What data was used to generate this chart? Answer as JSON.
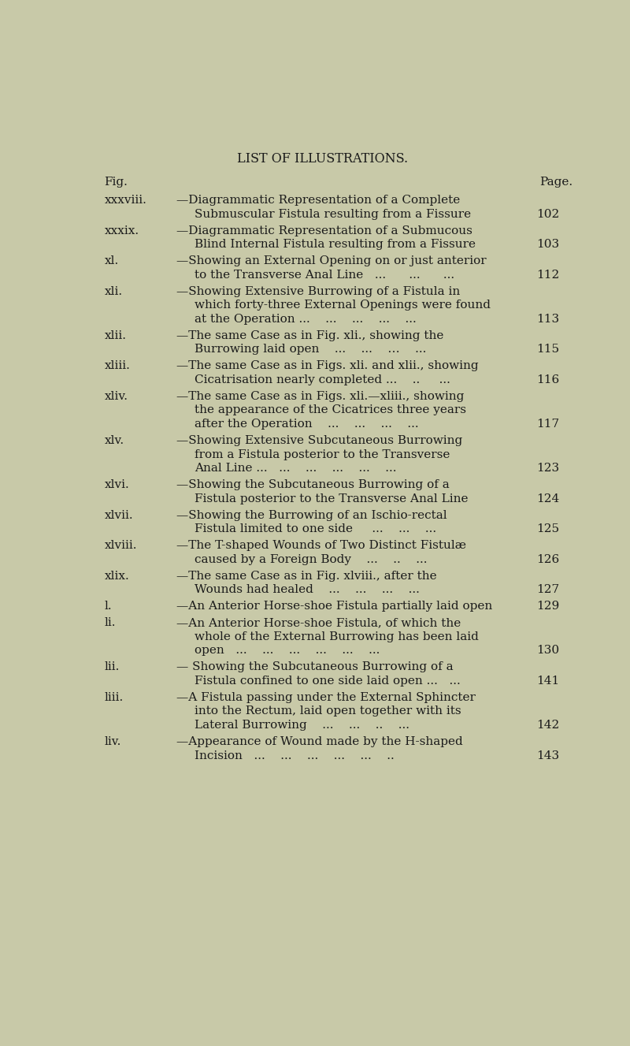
{
  "title": "LIST OF ILLUSTRATIONS.",
  "header_left": "Fig.",
  "header_right": "Page.",
  "background_color": "#c8c9a8",
  "text_color": "#1a1a1a",
  "title_fontsize": 11.5,
  "body_fontsize": 11.0,
  "entries": [
    {
      "fig": "xxxviii.",
      "text_lines": [
        "—Diagrammatic Representation of a Complete",
        "Submuscular Fistula resulting from a Fissure"
      ],
      "page": "102"
    },
    {
      "fig": "xxxix.",
      "text_lines": [
        "—Diagrammatic Representation of a Submucous",
        "Blind Internal Fistula resulting from a Fissure"
      ],
      "page": "103"
    },
    {
      "fig": "xl.",
      "text_lines": [
        "—Showing an External Opening on or just anterior",
        "to the Transverse Anal Line   ...      ...      ..."
      ],
      "page": "112"
    },
    {
      "fig": "xli.",
      "text_lines": [
        "—Showing Extensive Burrowing of a Fistula in",
        "which forty-three External Openings were found",
        "at the Operation ...    ...    ...    ...    ..."
      ],
      "page": "113"
    },
    {
      "fig": "xlii.",
      "text_lines": [
        "—The same Case as in Fig. xli., showing the",
        "Burrowing laid open    ...    ...    …    ..."
      ],
      "page": "115"
    },
    {
      "fig": "xliii.",
      "text_lines": [
        "—The same Case as in Figs. xli. and xlii., showing",
        "Cicatrisation nearly completed ...    ..     ..."
      ],
      "page": "116"
    },
    {
      "fig": "xliv.",
      "text_lines": [
        "—The same Case as in Figs. xli.—xliii., showing",
        "the appearance of the Cicatrices three years",
        "after the Operation    ...    ...    ...    ..."
      ],
      "page": "117"
    },
    {
      "fig": "xlv.",
      "text_lines": [
        "—Showing Extensive Subcutaneous Burrowing",
        "from a Fistula posterior to the Transverse",
        "Anal Line ...   ...    ...    ...    ...    ..."
      ],
      "page": "123"
    },
    {
      "fig": "xlvi.",
      "text_lines": [
        "—Showing the Subcutaneous Burrowing of a",
        "Fistula posterior to the Transverse Anal Line"
      ],
      "page": "124"
    },
    {
      "fig": "xlvii.",
      "text_lines": [
        "—Showing the Burrowing of an Ischio-rectal",
        "Fistula limited to one side     ...    ...    ..."
      ],
      "page": "125"
    },
    {
      "fig": "xlviii.",
      "text_lines": [
        "—The T-shaped Wounds of Two Distinct Fistulæ",
        "caused by a Foreign Body    ...    ..    ..."
      ],
      "page": "126"
    },
    {
      "fig": "xlix.",
      "text_lines": [
        "—The same Case as in Fig. xlviii., after the",
        "Wounds had healed    ...    ...    ...    ..."
      ],
      "page": "127"
    },
    {
      "fig": "l.",
      "text_lines": [
        "—An Anterior Horse-shoe Fistula partially laid open"
      ],
      "page": "129"
    },
    {
      "fig": "li.",
      "text_lines": [
        "—An Anterior Horse-shoe Fistula, of which the",
        "whole of the External Burrowing has been laid",
        "open   ...    ...    ...    ...    ...    ..."
      ],
      "page": "130"
    },
    {
      "fig": "lii.",
      "text_lines": [
        "— Showing the Subcutaneous Burrowing of a",
        "Fistula confined to one side laid open ...   ..."
      ],
      "page": "141"
    },
    {
      "fig": "liii.",
      "text_lines": [
        "—A Fistula passing under the External Sphincter",
        "into the Rectum, laid open together with its",
        "Lateral Burrowing    ...    ...    ..    ..."
      ],
      "page": "142"
    },
    {
      "fig": "liv.",
      "text_lines": [
        "—Appearance of Wound made by the H-shaped",
        "Incision   ...    ...    ...    ...    ...    .."
      ],
      "page": "143"
    }
  ]
}
